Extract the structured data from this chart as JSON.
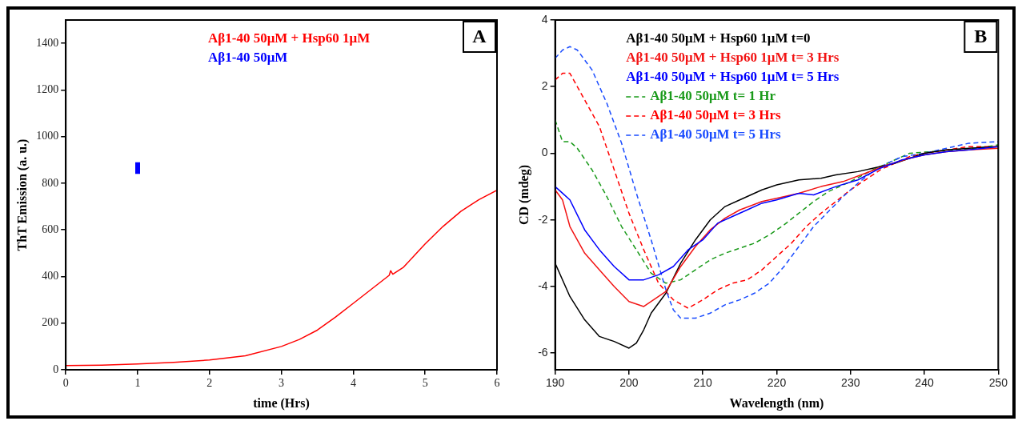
{
  "chart_data": [
    {
      "type": "line",
      "xlabel": "time (Hrs)",
      "ylabel": "ThT Emission (a. u.)",
      "xlim": [
        0,
        6
      ],
      "xticks": [
        0,
        1,
        2,
        3,
        4,
        5,
        6
      ],
      "ylim": [
        0,
        1500
      ],
      "yticks": [
        0,
        200,
        400,
        600,
        800,
        1000,
        1200,
        1400
      ],
      "marker": "none",
      "legend": "top",
      "annotations": [
        "A"
      ],
      "series": [
        {
          "name": "Aβ1-40 50μM + Hsp60 1μM",
          "color": "#ff0000",
          "line_style": "solid",
          "x": [
            0,
            0.5,
            1,
            1.5,
            2,
            2.5,
            3,
            3.25,
            3.5,
            3.75,
            4,
            4.25,
            4.5,
            4.52,
            4.55,
            4.7,
            4.85,
            5,
            5.25,
            5.5,
            5.75,
            6
          ],
          "values": [
            18,
            20,
            25,
            32,
            42,
            60,
            100,
            130,
            170,
            225,
            285,
            345,
            405,
            425,
            410,
            440,
            490,
            540,
            615,
            680,
            730,
            770
          ]
        },
        {
          "name": "Aβ1-40 50μM",
          "color": "#0000ff",
          "line_style": "solid",
          "x": [
            1,
            1
          ],
          "values": [
            840,
            890
          ]
        }
      ]
    },
    {
      "type": "line",
      "xlabel": "Wavelength (nm)",
      "ylabel": "CD (mdeg)",
      "xlim": [
        190,
        250
      ],
      "xticks": [
        190,
        200,
        210,
        220,
        230,
        240,
        250
      ],
      "ylim": [
        -6.5,
        4
      ],
      "yticks": [
        -6,
        -4,
        -2,
        0,
        2,
        4
      ],
      "marker": "none",
      "legend": "top left",
      "annotations": [
        "B"
      ],
      "series": [
        {
          "name": "Aβ1-40 50μM + Hsp60 1μM t=0",
          "color": "#000000",
          "line_style": "solid",
          "x": [
            190,
            192,
            194,
            196,
            198,
            200,
            201,
            202,
            203,
            205,
            207,
            209,
            211,
            213,
            215,
            218,
            220,
            223,
            226,
            228,
            231,
            233,
            236,
            238,
            240,
            243,
            246,
            250
          ],
          "values": [
            -3.3,
            -4.3,
            -5.0,
            -5.5,
            -5.65,
            -5.85,
            -5.7,
            -5.3,
            -4.8,
            -4.2,
            -3.3,
            -2.6,
            -2.0,
            -1.6,
            -1.4,
            -1.1,
            -0.95,
            -0.8,
            -0.75,
            -0.65,
            -0.55,
            -0.45,
            -0.3,
            -0.15,
            0,
            0.1,
            0.15,
            0.2
          ]
        },
        {
          "name": "Aβ1-40 50μM + Hsp60 1μM t= 3 Hrs",
          "color": "#f21414",
          "line_style": "solid",
          "x": [
            190,
            191,
            192,
            194,
            196,
            198,
            200,
            202,
            203,
            205,
            207,
            209,
            211,
            213,
            215,
            218,
            220,
            223,
            226,
            229,
            232,
            235,
            238,
            240,
            243,
            246,
            250
          ],
          "values": [
            -1.1,
            -1.4,
            -2.2,
            -3.0,
            -3.5,
            -4.0,
            -4.45,
            -4.6,
            -4.45,
            -4.15,
            -3.4,
            -2.8,
            -2.3,
            -1.95,
            -1.7,
            -1.45,
            -1.35,
            -1.2,
            -1.0,
            -0.85,
            -0.6,
            -0.35,
            -0.15,
            -0.05,
            0.05,
            0.1,
            0.15
          ]
        },
        {
          "name": "Aβ1-40 50μM + Hsp60 1μM t= 5 Hrs",
          "color": "#0000ff",
          "line_style": "solid",
          "x": [
            190,
            191,
            192,
            194,
            196,
            198,
            200,
            202,
            204,
            206,
            208,
            210,
            212,
            214,
            216,
            218,
            220,
            223,
            225,
            228,
            231,
            234,
            237,
            240,
            243,
            246,
            250
          ],
          "values": [
            -1.0,
            -1.2,
            -1.4,
            -2.3,
            -2.9,
            -3.4,
            -3.8,
            -3.8,
            -3.65,
            -3.4,
            -2.9,
            -2.6,
            -2.1,
            -1.9,
            -1.7,
            -1.5,
            -1.4,
            -1.2,
            -1.25,
            -1.0,
            -0.8,
            -0.45,
            -0.2,
            -0.05,
            0.05,
            0.1,
            0.2
          ]
        },
        {
          "name": "Aβ1-40 50μM t= 1 Hr",
          "color": "#1a9a1a",
          "line_style": "dashed",
          "x": [
            190,
            191,
            192,
            193,
            195,
            197,
            199,
            201,
            203,
            205,
            207,
            209,
            211,
            213,
            215,
            217,
            219,
            221,
            223,
            225,
            227,
            230,
            233,
            236,
            238,
            241,
            244,
            247,
            250
          ],
          "values": [
            1.0,
            0.35,
            0.35,
            0.15,
            -0.5,
            -1.3,
            -2.2,
            -2.9,
            -3.6,
            -3.9,
            -3.8,
            -3.5,
            -3.2,
            -3.0,
            -2.85,
            -2.7,
            -2.45,
            -2.15,
            -1.8,
            -1.45,
            -1.15,
            -0.85,
            -0.5,
            -0.2,
            0,
            0.05,
            0.1,
            0.15,
            0.25
          ]
        },
        {
          "name": "Aβ1-40 50μM t= 3 Hrs",
          "color": "#ff0000",
          "line_style": "dashed",
          "x": [
            190,
            191,
            192,
            194,
            196,
            198,
            200,
            202,
            204,
            206,
            208,
            210,
            212,
            214,
            216,
            218,
            220,
            222,
            224,
            226,
            228,
            230,
            232,
            234,
            236,
            238,
            240,
            243,
            246,
            250
          ],
          "values": [
            2.2,
            2.4,
            2.4,
            1.6,
            0.8,
            -0.5,
            -1.8,
            -2.9,
            -3.9,
            -4.4,
            -4.65,
            -4.4,
            -4.1,
            -3.9,
            -3.8,
            -3.5,
            -3.1,
            -2.7,
            -2.2,
            -1.8,
            -1.45,
            -1.1,
            -0.8,
            -0.5,
            -0.3,
            -0.1,
            0,
            0.1,
            0.2,
            0.2
          ]
        },
        {
          "name": "Aβ1-40 50μM t= 5 Hrs",
          "color": "#1a4cff",
          "line_style": "dashed",
          "x": [
            190,
            191,
            192,
            193,
            194,
            195,
            197,
            199,
            201,
            203,
            205,
            206,
            207,
            209,
            211,
            213,
            215,
            217,
            219,
            221,
            223,
            225,
            227,
            229,
            231,
            233,
            235,
            237,
            240,
            243,
            246,
            250
          ],
          "values": [
            2.85,
            3.1,
            3.2,
            3.1,
            2.8,
            2.5,
            1.5,
            0.3,
            -1.2,
            -2.6,
            -4.1,
            -4.7,
            -4.95,
            -4.95,
            -4.8,
            -4.55,
            -4.4,
            -4.2,
            -3.9,
            -3.4,
            -2.8,
            -2.2,
            -1.75,
            -1.3,
            -0.9,
            -0.55,
            -0.3,
            -0.1,
            0,
            0.15,
            0.3,
            0.35
          ]
        }
      ]
    }
  ]
}
